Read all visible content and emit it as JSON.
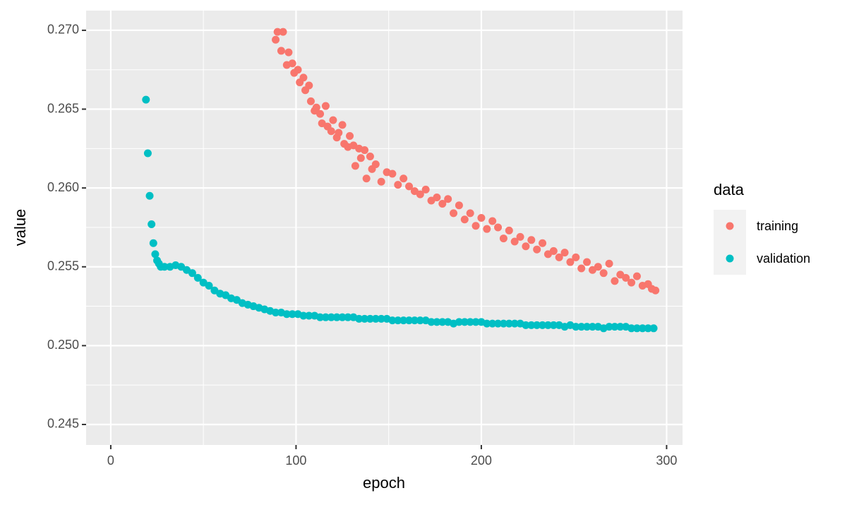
{
  "chart_data": {
    "type": "scatter",
    "x_label": "epoch",
    "y_label": "value",
    "legend_title": "data",
    "xlim": [
      -13.3,
      308.6
    ],
    "ylim": [
      0.2437,
      0.27125
    ],
    "xticks": [
      0,
      100,
      200,
      300
    ],
    "yticks": [
      0.245,
      {
        "value": 0.25,
        "label": "0.250"
      },
      0.255,
      {
        "value": 0.26,
        "label": "0.260"
      },
      0.265,
      {
        "value": 0.27,
        "label": "0.270"
      }
    ],
    "xminorticks": [
      50,
      150,
      250
    ],
    "yminorticks": [
      0.2475,
      0.2525,
      0.2575,
      0.2625,
      0.2675
    ],
    "grid": true,
    "legend_position": "right",
    "series": [
      {
        "name": "training",
        "color": "#F8766D",
        "x": [
          89,
          90,
          92,
          93,
          95,
          96,
          98,
          99,
          101,
          102,
          104,
          105,
          107,
          108,
          110,
          111,
          113,
          114,
          116,
          117,
          119,
          120,
          122,
          123,
          125,
          126,
          128,
          129,
          131,
          132,
          134,
          135,
          137,
          138,
          140,
          141,
          143,
          146,
          149,
          152,
          155,
          158,
          161,
          164,
          167,
          170,
          173,
          176,
          179,
          182,
          185,
          188,
          191,
          194,
          197,
          200,
          203,
          206,
          209,
          212,
          215,
          218,
          221,
          224,
          227,
          230,
          233,
          236,
          239,
          242,
          245,
          248,
          251,
          254,
          257,
          260,
          263,
          266,
          269,
          272,
          275,
          278,
          281,
          284,
          287,
          290,
          292,
          294
        ],
        "values": [
          0.2694,
          0.2699,
          0.2687,
          0.2699,
          0.2678,
          0.2686,
          0.2679,
          0.2673,
          0.2675,
          0.2667,
          0.267,
          0.2662,
          0.2665,
          0.2655,
          0.2649,
          0.2651,
          0.2647,
          0.2641,
          0.2652,
          0.2639,
          0.2636,
          0.2643,
          0.2632,
          0.2635,
          0.264,
          0.2628,
          0.2626,
          0.2633,
          0.2627,
          0.2614,
          0.2625,
          0.2619,
          0.2624,
          0.2606,
          0.262,
          0.2612,
          0.2615,
          0.2604,
          0.261,
          0.2609,
          0.2602,
          0.2606,
          0.2601,
          0.2598,
          0.2596,
          0.2599,
          0.2592,
          0.2594,
          0.259,
          0.2593,
          0.2584,
          0.2589,
          0.258,
          0.2584,
          0.2576,
          0.2581,
          0.2574,
          0.2579,
          0.2575,
          0.2568,
          0.2573,
          0.2566,
          0.2569,
          0.2563,
          0.2567,
          0.2561,
          0.2565,
          0.2558,
          0.256,
          0.2556,
          0.2559,
          0.2553,
          0.2556,
          0.2549,
          0.2553,
          0.2548,
          0.255,
          0.2546,
          0.2552,
          0.2541,
          0.2545,
          0.2543,
          0.254,
          0.2544,
          0.2538,
          0.2539,
          0.2536,
          0.2535
        ]
      },
      {
        "name": "validation",
        "color": "#00BFC4",
        "x": [
          19,
          20,
          21,
          22,
          23,
          24,
          25,
          26,
          27,
          29,
          32,
          35,
          38,
          41,
          44,
          47,
          50,
          53,
          56,
          59,
          62,
          65,
          68,
          71,
          74,
          77,
          80,
          83,
          86,
          89,
          92,
          95,
          98,
          101,
          104,
          107,
          110,
          113,
          116,
          119,
          122,
          125,
          128,
          131,
          134,
          137,
          140,
          143,
          146,
          149,
          152,
          155,
          158,
          161,
          164,
          167,
          170,
          173,
          176,
          179,
          182,
          185,
          188,
          191,
          194,
          197,
          200,
          203,
          206,
          209,
          212,
          215,
          218,
          221,
          224,
          227,
          230,
          233,
          236,
          239,
          242,
          245,
          248,
          251,
          254,
          257,
          260,
          263,
          266,
          269,
          272,
          275,
          278,
          281,
          284,
          287,
          290,
          293
        ],
        "values": [
          0.2656,
          0.2622,
          0.2595,
          0.2577,
          0.2565,
          0.2558,
          0.2554,
          0.2552,
          0.255,
          0.255,
          0.255,
          0.2551,
          0.255,
          0.2548,
          0.2546,
          0.2543,
          0.254,
          0.2538,
          0.2535,
          0.2533,
          0.2532,
          0.253,
          0.2529,
          0.2527,
          0.2526,
          0.2525,
          0.2524,
          0.2523,
          0.2522,
          0.2521,
          0.2521,
          0.252,
          0.252,
          0.252,
          0.2519,
          0.2519,
          0.2519,
          0.2518,
          0.2518,
          0.2518,
          0.2518,
          0.2518,
          0.2518,
          0.2518,
          0.2517,
          0.2517,
          0.2517,
          0.2517,
          0.2517,
          0.2517,
          0.2516,
          0.2516,
          0.2516,
          0.2516,
          0.2516,
          0.2516,
          0.2516,
          0.2515,
          0.2515,
          0.2515,
          0.2515,
          0.2514,
          0.2515,
          0.2515,
          0.2515,
          0.2515,
          0.2515,
          0.2514,
          0.2514,
          0.2514,
          0.2514,
          0.2514,
          0.2514,
          0.2514,
          0.2513,
          0.2513,
          0.2513,
          0.2513,
          0.2513,
          0.2513,
          0.2513,
          0.2512,
          0.2513,
          0.2512,
          0.2512,
          0.2512,
          0.2512,
          0.2512,
          0.2511,
          0.2512,
          0.2512,
          0.2512,
          0.2512,
          0.2511,
          0.2511,
          0.2511,
          0.2511,
          0.2511
        ]
      }
    ]
  }
}
